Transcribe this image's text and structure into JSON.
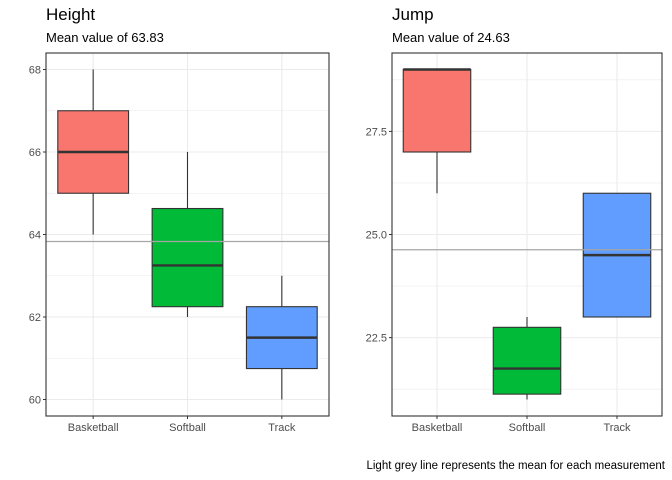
{
  "caption": "Light grey line represents the mean for each measurement",
  "colors": {
    "Basketball": "#f8766d",
    "Softball": "#00ba38",
    "Track": "#619cff",
    "mean_line": "#a6a6a6",
    "grid": "#ebebeb",
    "panel_border": "#333333",
    "median": "#333333"
  },
  "chart_data": [
    {
      "type": "box",
      "title": "Height",
      "subtitle": "Mean value of 63.83",
      "categories": [
        "Basketball",
        "Softball",
        "Track"
      ],
      "series": [
        {
          "min": 64,
          "q1": 65,
          "median": 66,
          "q3": 67,
          "max": 68
        },
        {
          "min": 62,
          "q1": 62.25,
          "median": 63.25,
          "q3": 64.63,
          "max": 66
        },
        {
          "min": 60,
          "q1": 60.75,
          "median": 61.5,
          "q3": 62.25,
          "max": 63
        }
      ],
      "mean": 63.83,
      "ylim": [
        59.6,
        68.4
      ],
      "yticks": [
        60,
        62,
        64,
        66,
        68
      ],
      "ytick_labels": [
        "60",
        "62",
        "64",
        "66",
        "68"
      ],
      "grid": true,
      "legend": "none"
    },
    {
      "type": "box",
      "title": "Jump",
      "subtitle": "Mean value of 24.63",
      "categories": [
        "Basketball",
        "Softball",
        "Track"
      ],
      "series": [
        {
          "min": 26,
          "q1": 27,
          "median": 29,
          "q3": 29,
          "max": 29
        },
        {
          "min": 21,
          "q1": 21.13,
          "median": 21.75,
          "q3": 22.75,
          "max": 23
        },
        {
          "min": 23,
          "q1": 23,
          "median": 24.5,
          "q3": 26,
          "max": 26
        }
      ],
      "mean": 24.63,
      "ylim": [
        20.6,
        29.4
      ],
      "yticks": [
        22.5,
        25.0,
        27.5
      ],
      "ytick_labels": [
        "22.5",
        "25.0",
        "27.5"
      ],
      "grid": true,
      "legend": "none"
    }
  ]
}
